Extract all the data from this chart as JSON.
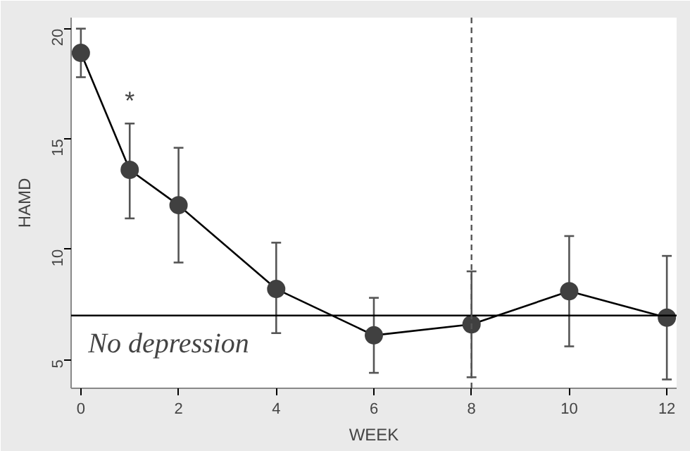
{
  "chart_data": {
    "type": "line",
    "xlabel": "WEEK",
    "ylabel": "HAMD",
    "x": [
      0,
      1,
      2,
      4,
      6,
      8,
      10,
      12
    ],
    "series": [
      {
        "color": "#404040",
        "values": [
          18.9,
          13.6,
          12.0,
          8.2,
          6.1,
          6.6,
          8.1,
          6.9
        ],
        "errors": [
          [
            17.8,
            20.0
          ],
          [
            11.4,
            15.7
          ],
          [
            9.4,
            14.6
          ],
          [
            6.2,
            10.3
          ],
          [
            4.4,
            7.8
          ],
          [
            4.2,
            9.0
          ],
          [
            5.6,
            10.6
          ],
          [
            4.1,
            9.7
          ]
        ]
      }
    ],
    "xlim": [
      -0.2,
      12.2
    ],
    "ylim": [
      3.7,
      20.5
    ],
    "xticks": [
      0,
      2,
      4,
      6,
      8,
      10,
      12
    ],
    "yticks": [
      5,
      10,
      15,
      20
    ],
    "marker": "circle",
    "line_style": "solid",
    "grid": false,
    "ref_lines": [
      {
        "axis": "y",
        "value": 7,
        "label": "No depression",
        "line_style": "solid",
        "color": "#000000"
      },
      {
        "axis": "x",
        "value": 8,
        "line_style": "dashed",
        "color": "#555555"
      }
    ],
    "annotations": [
      "*"
    ]
  }
}
